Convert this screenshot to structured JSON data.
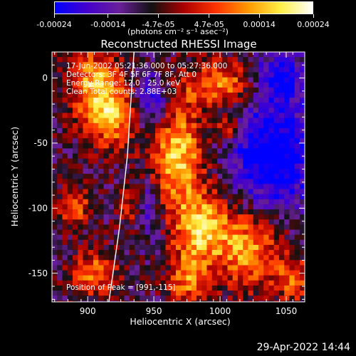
{
  "chart_data": {
    "type": "heatmap",
    "title": "Reconstructed RHESSI Image",
    "xlabel": "Heliocentric X (arcsec)",
    "ylabel": "Heliocentric Y (arcsec)",
    "xlim": [
      873,
      1064
    ],
    "ylim": [
      -172,
      20
    ],
    "xticks": [
      900,
      950,
      1000,
      1050
    ],
    "yticks": [
      0,
      -50,
      -100,
      -150
    ],
    "colorbar": {
      "range": [
        -0.00024,
        0.00024
      ],
      "tick_values": [
        -0.00024,
        -0.00014,
        -4.7e-05,
        4.7e-05,
        0.00014,
        0.00024
      ],
      "tick_labels": [
        "-0.00024",
        "-0.00014",
        "-4.7e-05",
        "4.7e-05",
        "0.00014",
        "0.00024"
      ],
      "units_label": "(photons cm⁻² s⁻¹ asec⁻²)",
      "colors": [
        "#0000ff",
        "#4400cc",
        "#6a1f9a",
        "#111111",
        "#aa0000",
        "#ff3300",
        "#ff9900",
        "#ffee44",
        "#ffffff"
      ]
    },
    "annotations": [
      "17-Jun-2002 05:21:36.000 to 05:27:36.000",
      "Detectors: 3F 4F 5F 6F 7F 8F, Att 0",
      "Energy Range: 12.0 - 25.0 keV",
      "Clean     Total counts: 2.88E+03",
      "Position of Peak = [991,-115]"
    ],
    "peak": {
      "x": 991,
      "y": -115
    },
    "bright_regions": [
      {
        "x": 905,
        "y": -5,
        "sx": 14,
        "sy": 20,
        "amp": 0.7
      },
      {
        "x": 920,
        "y": -30,
        "sx": 14,
        "sy": 18,
        "amp": 0.6
      },
      {
        "x": 890,
        "y": -100,
        "sx": 10,
        "sy": 10,
        "amp": 0.5
      },
      {
        "x": 905,
        "y": -150,
        "sx": 12,
        "sy": 12,
        "amp": 0.6
      },
      {
        "x": 968,
        "y": -60,
        "sx": 14,
        "sy": 28,
        "amp": 0.85
      },
      {
        "x": 985,
        "y": -115,
        "sx": 14,
        "sy": 18,
        "amp": 0.8
      },
      {
        "x": 975,
        "y": -155,
        "sx": 10,
        "sy": 14,
        "amp": 0.6
      },
      {
        "x": 1000,
        "y": -5,
        "sx": 20,
        "sy": 12,
        "amp": 0.65
      },
      {
        "x": 1020,
        "y": -130,
        "sx": 18,
        "sy": 22,
        "amp": 0.7
      },
      {
        "x": 1055,
        "y": -155,
        "sx": 10,
        "sy": 12,
        "amp": 0.5
      },
      {
        "x": 1007,
        "y": -40,
        "sx": 6,
        "sy": 6,
        "amp": 0.6
      },
      {
        "x": 935,
        "y": -100,
        "sx": 8,
        "sy": 12,
        "amp": 0.4
      }
    ],
    "dark_regions": [
      {
        "x": 1040,
        "y": -60,
        "sx": 22,
        "sy": 30,
        "amp": 0.8
      },
      {
        "x": 1045,
        "y": 0,
        "sx": 14,
        "sy": 14,
        "amp": 0.6
      },
      {
        "x": 948,
        "y": -20,
        "sx": 10,
        "sy": 16,
        "amp": 0.55
      },
      {
        "x": 945,
        "y": -100,
        "sx": 8,
        "sy": 16,
        "amp": 0.45
      }
    ],
    "limb_line": [
      [
        935,
        20
      ],
      [
        930,
        -60
      ],
      [
        924,
        -115
      ],
      [
        916,
        -172
      ]
    ]
  },
  "timestamp": "29-Apr-2022 14:44"
}
